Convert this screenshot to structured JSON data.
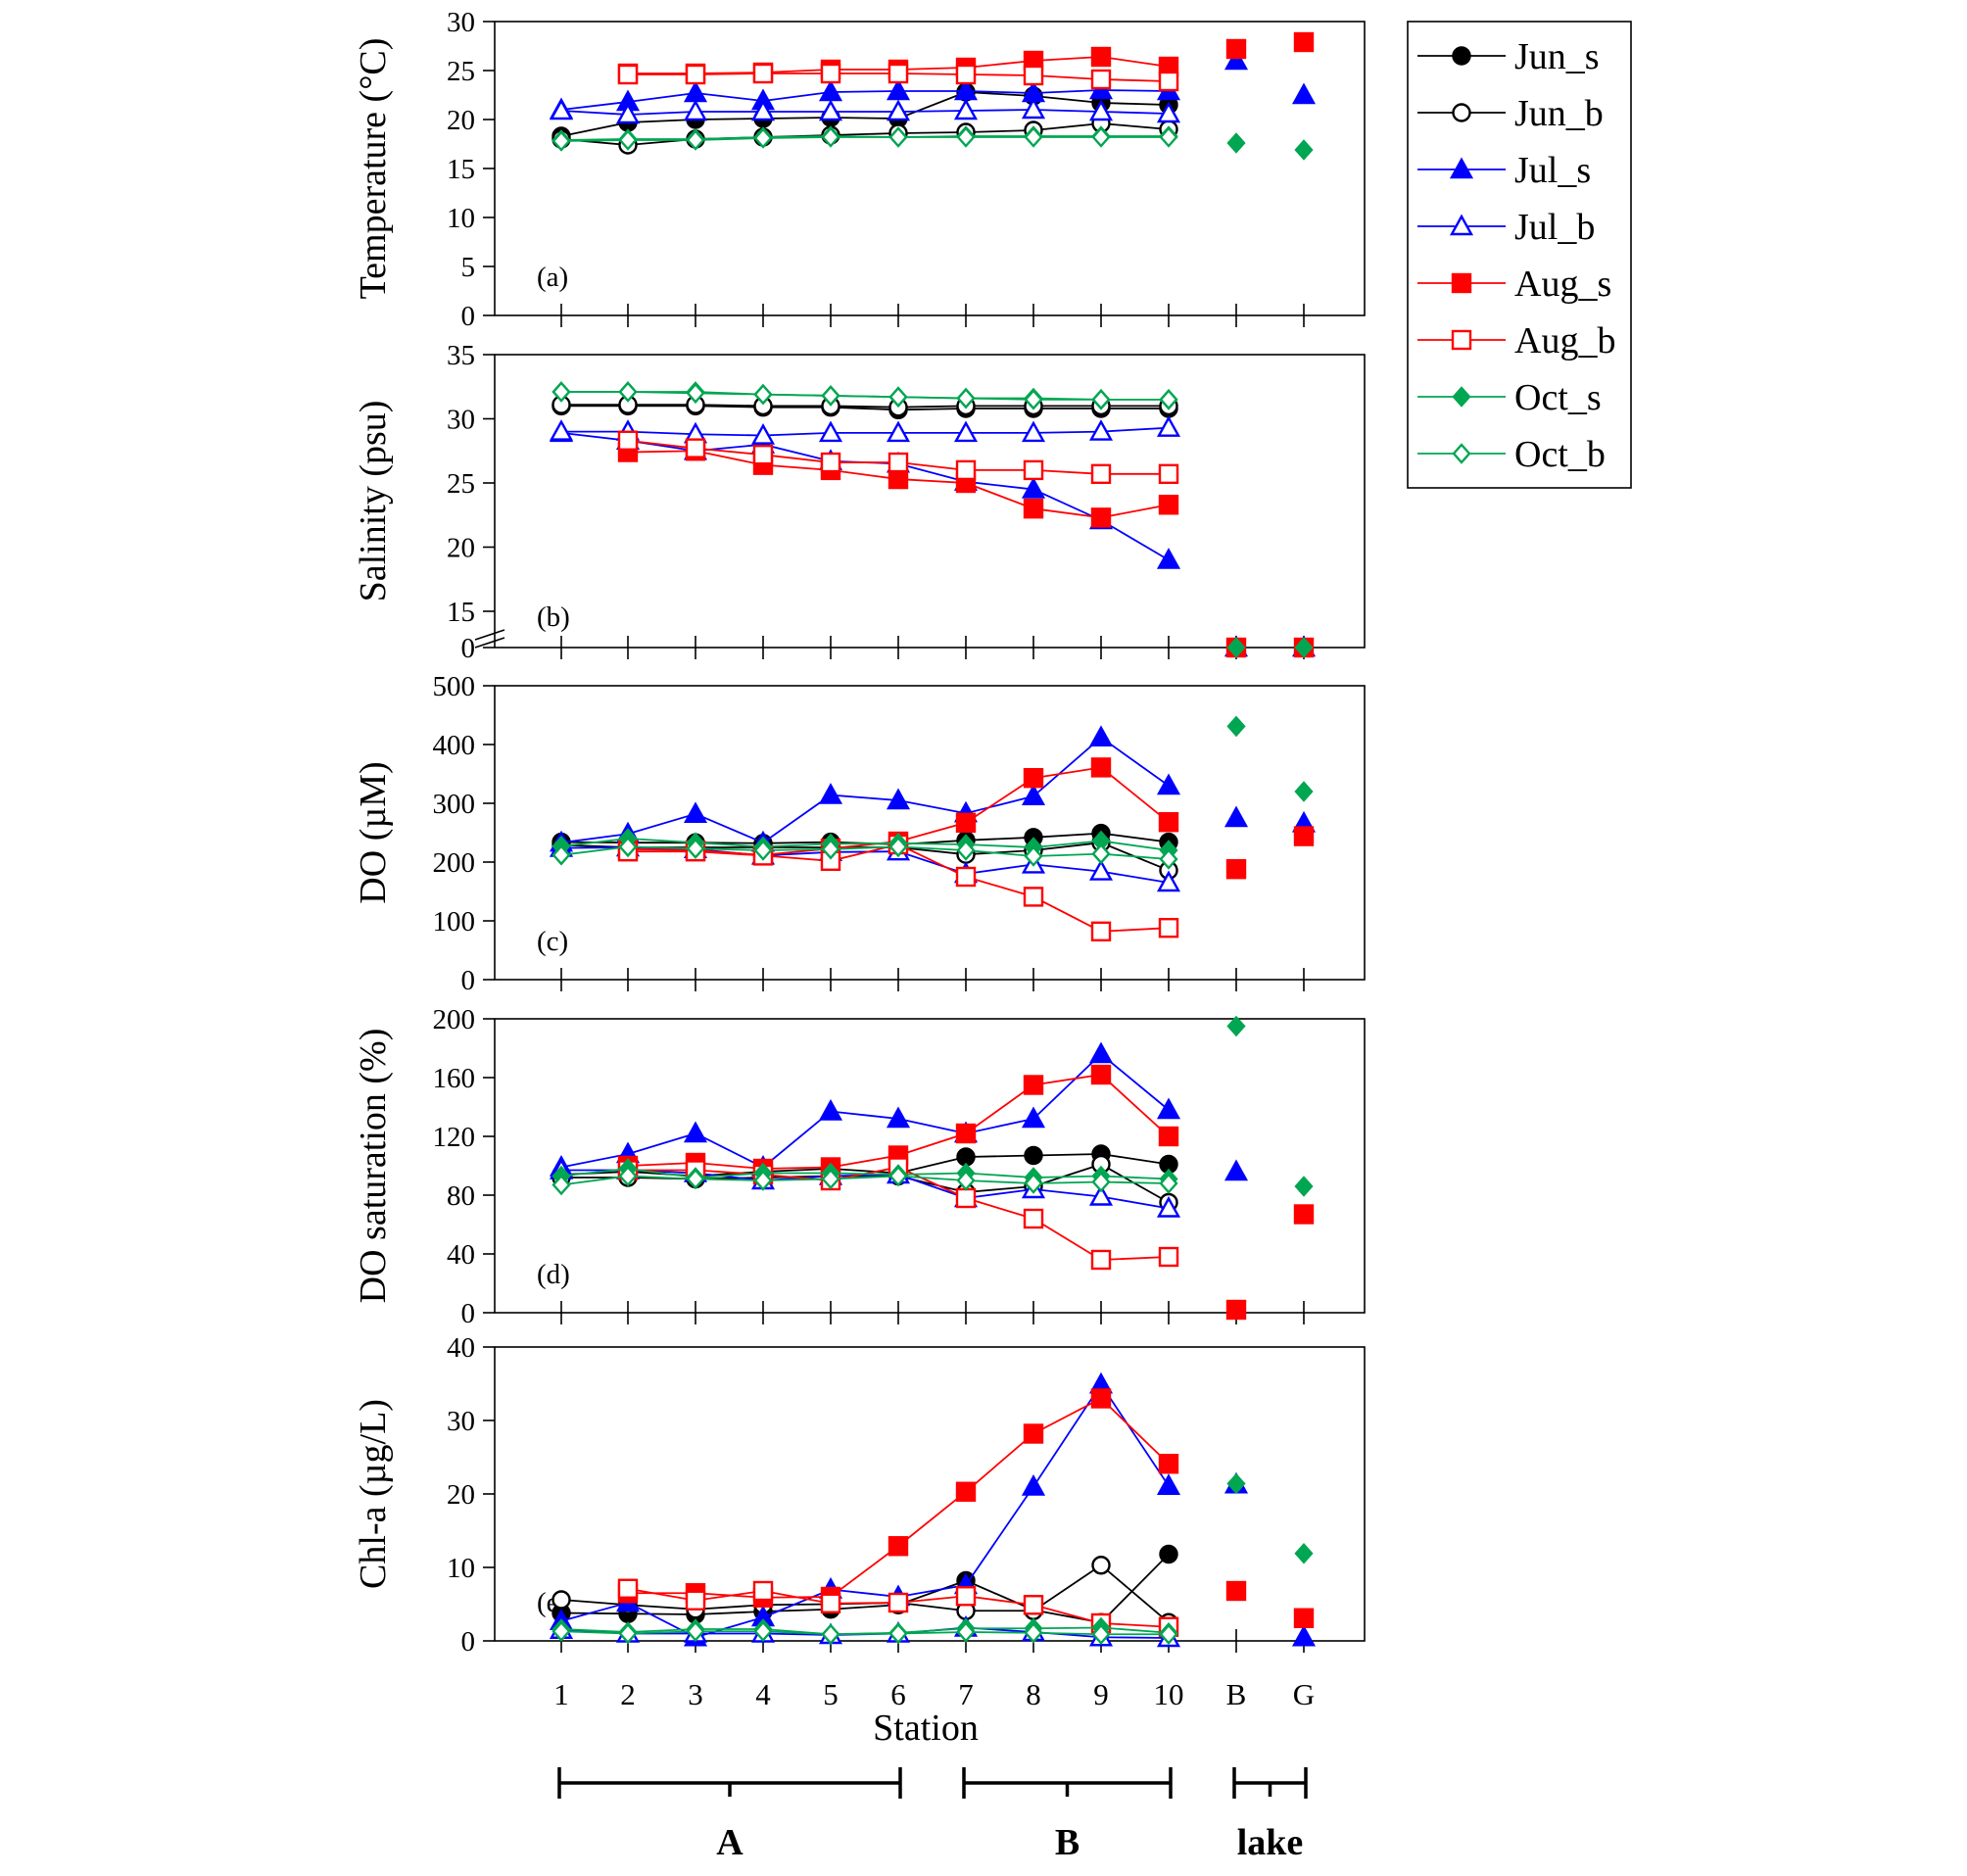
{
  "legend": [
    {
      "name": "Jun_s",
      "color": "#000000",
      "marker": "circle",
      "filled": true
    },
    {
      "name": "Jun_b",
      "color": "#000000",
      "marker": "circle",
      "filled": false
    },
    {
      "name": "Jul_s",
      "color": "#0000ff",
      "marker": "triangle",
      "filled": true
    },
    {
      "name": "Jul_b",
      "color": "#0000ff",
      "marker": "triangle",
      "filled": false
    },
    {
      "name": "Aug_s",
      "color": "#ff0000",
      "marker": "square",
      "filled": true
    },
    {
      "name": "Aug_b",
      "color": "#ff0000",
      "marker": "square",
      "filled": false
    },
    {
      "name": "Oct_s",
      "color": "#00a651",
      "marker": "diamond",
      "filled": true
    },
    {
      "name": "Oct_b",
      "color": "#00a651",
      "marker": "diamond",
      "filled": false
    }
  ],
  "x_categories": [
    "1",
    "2",
    "3",
    "4",
    "5",
    "6",
    "7",
    "8",
    "9",
    "10",
    "B",
    "G"
  ],
  "xlabel": "Station",
  "groups": [
    {
      "label": "A",
      "from": "1",
      "to": "6"
    },
    {
      "label": "B",
      "from": "7",
      "to": "10"
    },
    {
      "label": "lake",
      "from": "B",
      "to": "G"
    }
  ],
  "chart_data": [
    {
      "type": "line",
      "panel": "(a)",
      "ylabel": "Temperature (°C)",
      "ylim": [
        0,
        30
      ],
      "yticks": [
        0,
        5,
        10,
        15,
        20,
        25,
        30
      ],
      "series": [
        {
          "name": "Jun_s",
          "values": [
            18.3,
            19.7,
            20.0,
            20.1,
            20.2,
            20.1,
            22.8,
            22.4,
            21.7,
            21.5,
            null,
            null
          ]
        },
        {
          "name": "Jun_b",
          "values": [
            18.0,
            17.4,
            18.0,
            18.2,
            18.4,
            18.6,
            18.7,
            18.9,
            19.6,
            19.0,
            null,
            null
          ]
        },
        {
          "name": "Jul_s",
          "values": [
            21.0,
            21.8,
            22.7,
            21.9,
            22.8,
            22.9,
            22.9,
            22.7,
            23.0,
            22.9,
            26.0,
            22.5
          ]
        },
        {
          "name": "Jul_b",
          "values": [
            20.9,
            20.5,
            20.8,
            20.8,
            20.8,
            20.8,
            20.9,
            21.0,
            20.8,
            20.6,
            null,
            null
          ]
        },
        {
          "name": "Aug_s",
          "values": [
            null,
            24.7,
            24.7,
            24.8,
            25.1,
            25.1,
            25.3,
            26.0,
            26.4,
            25.4,
            27.2,
            27.9
          ]
        },
        {
          "name": "Aug_b",
          "values": [
            null,
            24.6,
            24.6,
            24.7,
            24.7,
            24.7,
            24.6,
            24.5,
            24.1,
            23.9,
            null,
            null
          ]
        },
        {
          "name": "Oct_s",
          "values": [
            17.9,
            18.0,
            18.0,
            18.2,
            18.3,
            18.2,
            18.3,
            18.3,
            18.3,
            18.3,
            17.6,
            16.9
          ]
        },
        {
          "name": "Oct_b",
          "values": [
            17.8,
            17.9,
            17.9,
            18.1,
            18.2,
            18.2,
            18.2,
            18.2,
            18.2,
            18.2,
            null,
            null
          ]
        }
      ]
    },
    {
      "type": "line",
      "panel": "(b)",
      "ylabel": "Salinity (psu)",
      "ylim": [
        15,
        35
      ],
      "axis_break": true,
      "yticks": [
        "0",
        "15",
        "20",
        "25",
        "30",
        "35"
      ],
      "series": [
        {
          "name": "Jun_s",
          "values": [
            31.0,
            31.0,
            31.0,
            30.9,
            30.9,
            30.7,
            30.8,
            30.8,
            30.8,
            30.8,
            null,
            null
          ]
        },
        {
          "name": "Jun_b",
          "values": [
            31.1,
            31.1,
            31.1,
            31.0,
            31.0,
            30.9,
            31.0,
            31.0,
            31.0,
            31.0,
            null,
            null
          ]
        },
        {
          "name": "Jul_s",
          "values": [
            28.9,
            28.3,
            27.5,
            28.0,
            26.7,
            26.5,
            25.1,
            24.5,
            22.1,
            19.0,
            0,
            0
          ]
        },
        {
          "name": "Jul_b",
          "values": [
            29.0,
            29.0,
            28.8,
            28.7,
            28.9,
            28.9,
            28.9,
            28.9,
            29.0,
            29.3,
            null,
            null
          ]
        },
        {
          "name": "Aug_s",
          "values": [
            null,
            27.4,
            27.5,
            26.4,
            26.0,
            25.3,
            25.0,
            23.0,
            22.3,
            23.3,
            0,
            0
          ]
        },
        {
          "name": "Aug_b",
          "values": [
            null,
            28.3,
            27.7,
            27.2,
            26.6,
            26.6,
            26.0,
            26.0,
            25.7,
            25.7,
            null,
            null
          ]
        },
        {
          "name": "Oct_s",
          "values": [
            32.1,
            32.1,
            32.1,
            31.9,
            31.8,
            31.7,
            31.6,
            31.6,
            31.5,
            31.5,
            0,
            0
          ]
        },
        {
          "name": "Oct_b",
          "values": [
            32.1,
            32.1,
            32.0,
            31.9,
            31.8,
            31.7,
            31.6,
            31.5,
            31.5,
            31.5,
            null,
            null
          ]
        }
      ]
    },
    {
      "type": "line",
      "panel": "(c)",
      "ylabel": "DO (µM)",
      "ylim": [
        0,
        500
      ],
      "yticks": [
        0,
        100,
        200,
        300,
        400,
        500
      ],
      "series": [
        {
          "name": "Jun_s",
          "values": [
            234,
            233,
            233,
            232,
            234,
            230,
            237,
            242,
            249,
            234,
            null,
            null
          ]
        },
        {
          "name": "Jun_b",
          "values": [
            229,
            225,
            225,
            225,
            225,
            225,
            213,
            220,
            233,
            186,
            null,
            null
          ]
        },
        {
          "name": "Jul_s",
          "values": [
            233,
            248,
            282,
            233,
            314,
            305,
            283,
            312,
            412,
            330,
            275,
            266
          ]
        },
        {
          "name": "Jul_b",
          "values": [
            224,
            225,
            222,
            211,
            217,
            218,
            180,
            196,
            184,
            165,
            null,
            null
          ]
        },
        {
          "name": "Aug_s",
          "values": [
            null,
            222,
            220,
            212,
            223,
            235,
            267,
            343,
            361,
            268,
            188,
            244
          ]
        },
        {
          "name": "Aug_b",
          "values": [
            null,
            218,
            218,
            211,
            202,
            230,
            175,
            141,
            82,
            88,
            null,
            null
          ]
        },
        {
          "name": "Oct_s",
          "values": [
            227,
            240,
            233,
            226,
            231,
            232,
            230,
            225,
            236,
            220,
            431,
            320
          ]
        },
        {
          "name": "Oct_b",
          "values": [
            212,
            226,
            223,
            220,
            222,
            226,
            220,
            210,
            214,
            205,
            null,
            null
          ]
        }
      ]
    },
    {
      "type": "line",
      "panel": "(d)",
      "ylabel": "DO saturation (%)",
      "ylim": [
        0,
        200
      ],
      "yticks": [
        0,
        40,
        80,
        120,
        160,
        200
      ],
      "series": [
        {
          "name": "Jun_s",
          "values": [
            94,
            96,
            93,
            96,
            98,
            95,
            106,
            107,
            108,
            101,
            null,
            null
          ]
        },
        {
          "name": "Jun_b",
          "values": [
            92,
            92,
            91,
            92,
            93,
            93,
            82,
            86,
            101,
            75,
            null,
            null
          ]
        },
        {
          "name": "Jul_s",
          "values": [
            99,
            108,
            122,
            99,
            137,
            132,
            122,
            132,
            176,
            138,
            96,
            null
          ]
        },
        {
          "name": "Jul_b",
          "values": [
            97,
            97,
            95,
            90,
            93,
            94,
            78,
            84,
            79,
            71,
            null,
            null
          ]
        },
        {
          "name": "Aug_s",
          "values": [
            null,
            100,
            102,
            98,
            99,
            107,
            122,
            155,
            162,
            120,
            2,
            67
          ]
        },
        {
          "name": "Aug_b",
          "values": [
            null,
            97,
            97,
            94,
            90,
            99,
            78,
            64,
            36,
            38,
            null,
            null
          ]
        },
        {
          "name": "Oct_s",
          "values": [
            93,
            98,
            92,
            95,
            95,
            94,
            95,
            92,
            93,
            91,
            195,
            86
          ]
        },
        {
          "name": "Oct_b",
          "values": [
            87,
            93,
            91,
            90,
            91,
            93,
            90,
            88,
            89,
            88,
            null,
            null
          ]
        }
      ]
    },
    {
      "type": "line",
      "panel": "(e)",
      "ylabel": "Chl-a (µg/L)",
      "ylim": [
        0,
        40
      ],
      "yticks": [
        0,
        10,
        20,
        30,
        40
      ],
      "series": [
        {
          "name": "Jun_s",
          "values": [
            3.8,
            3.7,
            3.6,
            4.0,
            4.3,
            4.9,
            8.2,
            4.2,
            2.5,
            11.8,
            null,
            null
          ]
        },
        {
          "name": "Jun_b",
          "values": [
            5.6,
            4.9,
            4.3,
            4.9,
            5.0,
            5.2,
            4.1,
            4.1,
            10.3,
            2.5,
            null,
            null
          ]
        },
        {
          "name": "Jul_s",
          "values": [
            2.7,
            5.2,
            0.5,
            3.2,
            7.0,
            6.0,
            7.6,
            21.0,
            34.9,
            21.1,
            21.3,
            0.5
          ]
        },
        {
          "name": "Jul_b",
          "values": [
            1.5,
            1.0,
            1.0,
            1.0,
            0.8,
            1.0,
            1.8,
            1.2,
            0.5,
            0.4,
            null,
            null
          ]
        },
        {
          "name": "Aug_s",
          "values": [
            null,
            6.5,
            6.5,
            5.9,
            6.0,
            12.9,
            20.3,
            28.2,
            33.0,
            24.1,
            6.8,
            3.1
          ]
        },
        {
          "name": "Aug_b",
          "values": [
            null,
            7.1,
            5.5,
            6.8,
            5.1,
            5.2,
            6.1,
            4.9,
            2.4,
            1.9,
            null,
            null
          ]
        },
        {
          "name": "Oct_s",
          "values": [
            1.6,
            1.2,
            1.6,
            1.6,
            0.9,
            1.1,
            1.7,
            1.7,
            1.8,
            1.1,
            21.4,
            11.9
          ]
        },
        {
          "name": "Oct_b",
          "values": [
            1.3,
            1.0,
            1.3,
            1.3,
            0.9,
            1.0,
            1.2,
            1.1,
            0.9,
            0.9,
            null,
            null
          ]
        }
      ]
    }
  ]
}
